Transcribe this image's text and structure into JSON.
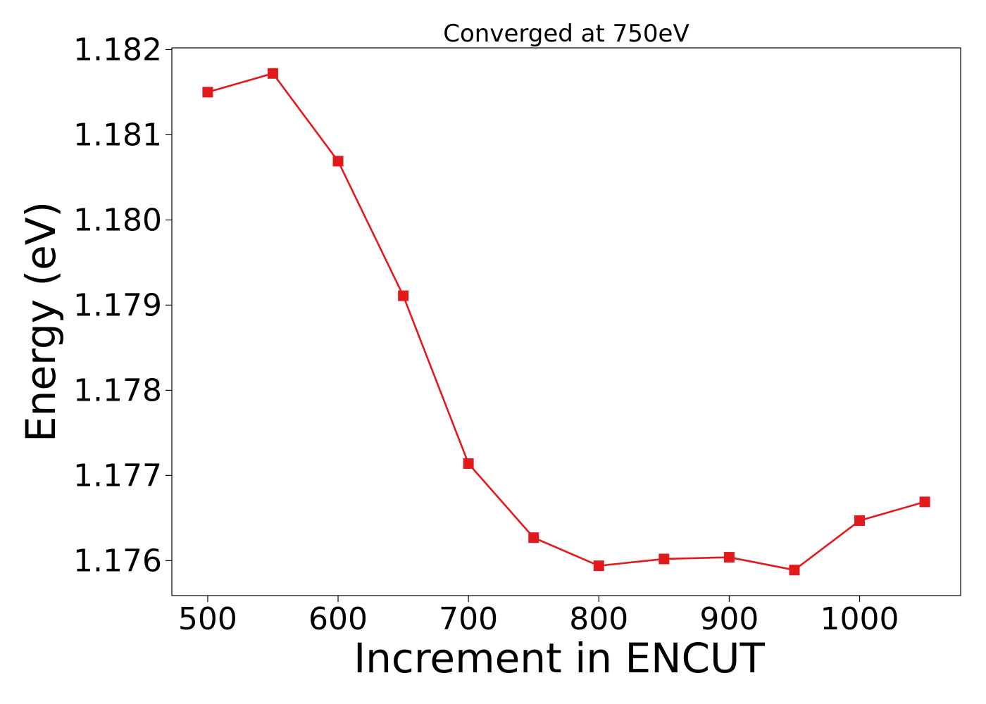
{
  "chart_data": {
    "type": "line",
    "title": "Converged at 750eV",
    "xlabel": "Increment in ENCUT",
    "ylabel": "Energy (eV)",
    "x": [
      500,
      550,
      600,
      650,
      700,
      750,
      800,
      850,
      900,
      950,
      1000,
      1050
    ],
    "series": [
      {
        "values": [
          1.1815,
          1.18172,
          1.18069,
          1.17911,
          1.17714,
          1.17627,
          1.17594,
          1.17602,
          1.17604,
          1.17589,
          1.17647,
          1.17669
        ],
        "color": "#e31a1c",
        "marker": "square"
      }
    ],
    "xlim": [
      472.5,
      1077.5
    ],
    "ylim": [
      1.17559,
      1.18202
    ],
    "xticks": [
      500,
      600,
      700,
      800,
      900,
      1000
    ],
    "xtick_labels": [
      "500",
      "600",
      "700",
      "800",
      "900",
      "1000"
    ],
    "yticks": [
      1.176,
      1.177,
      1.178,
      1.179,
      1.18,
      1.181,
      1.182
    ],
    "ytick_labels": [
      "1.176",
      "1.177",
      "1.178",
      "1.179",
      "1.180",
      "1.181",
      "1.182"
    ],
    "grid": false,
    "legend": false
  }
}
